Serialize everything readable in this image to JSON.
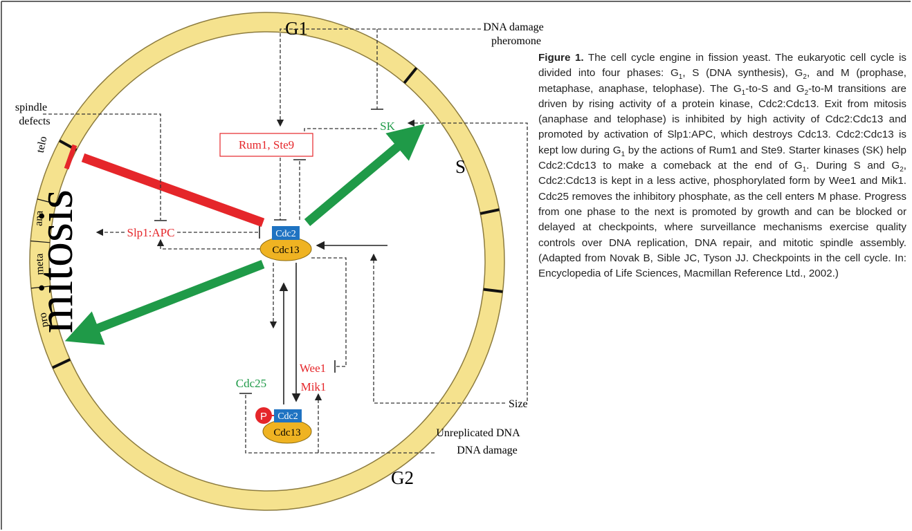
{
  "figure": {
    "phases": {
      "g1": "G1",
      "s": "S",
      "g2": "G2"
    },
    "mitosis": "mitosis",
    "mitosis_phases": [
      "telo",
      "ana",
      "meta",
      "pro"
    ],
    "molecules": {
      "rum1_ste9": "Rum1, Ste9",
      "sk": "SK",
      "slp1_apc": "Slp1:APC",
      "cdc2": "Cdc2",
      "cdc13": "Cdc13",
      "cdc2_p": "Cdc2",
      "cdc13_p": "Cdc13",
      "phosphate": "P",
      "wee1": "Wee1",
      "mik1": "Mik1",
      "cdc25": "Cdc25"
    },
    "signals": {
      "dna_damage_top": "DNA damage",
      "pheromone": "pheromone",
      "spindle": "spindle",
      "defects": "defects",
      "size": "Size",
      "unreplicated": "Unreplicated DNA",
      "dna_damage_bottom": "DNA damage"
    }
  },
  "caption": {
    "label": "Figure 1.",
    "text": [
      " The cell cycle engine in fission yeast. The eukaryotic cell cycle is divided into four phases: G",
      "1",
      ", S (DNA synthesis), G",
      "2",
      ", and M (prophase, metaphase, anaphase, telophase). The G",
      "1",
      "-to-S and G",
      "2",
      "-to-M transitions are driven by rising activity of a protein kinase, Cdc2:Cdc13. Exit from mitosis (anaphase and telophase) is inhibited by high activity of Cdc2:Cdc13 and promoted by activation of Slp1:APC, which destroys Cdc13. Cdc2:Cdc13 is kept low during G",
      "1",
      " by the actions of Rum1 and Ste9. Starter kinases (SK) help Cdc2:Cdc13 to make a comeback at the end of G",
      "1",
      ". During S and G",
      "2",
      ", Cdc2:Cdc13 is kept in a less active, phosphorylated form by Wee1 and Mik1. Cdc25 removes the inhibitory phosphate, as the cell enters M phase. Progress from one phase to the next is promoted by growth and can be blocked or delayed at checkpoints, where surveillance mechanisms exercise quality controls over DNA replication, DNA repair, and mitotic spindle assembly. (Adapted from Novak B, Sible JC, Tyson JJ. Checkpoints in the cell cycle. In: Encyclopedia of Life Sciences, Macmillan Reference Ltd., 2002.)"
    ]
  }
}
